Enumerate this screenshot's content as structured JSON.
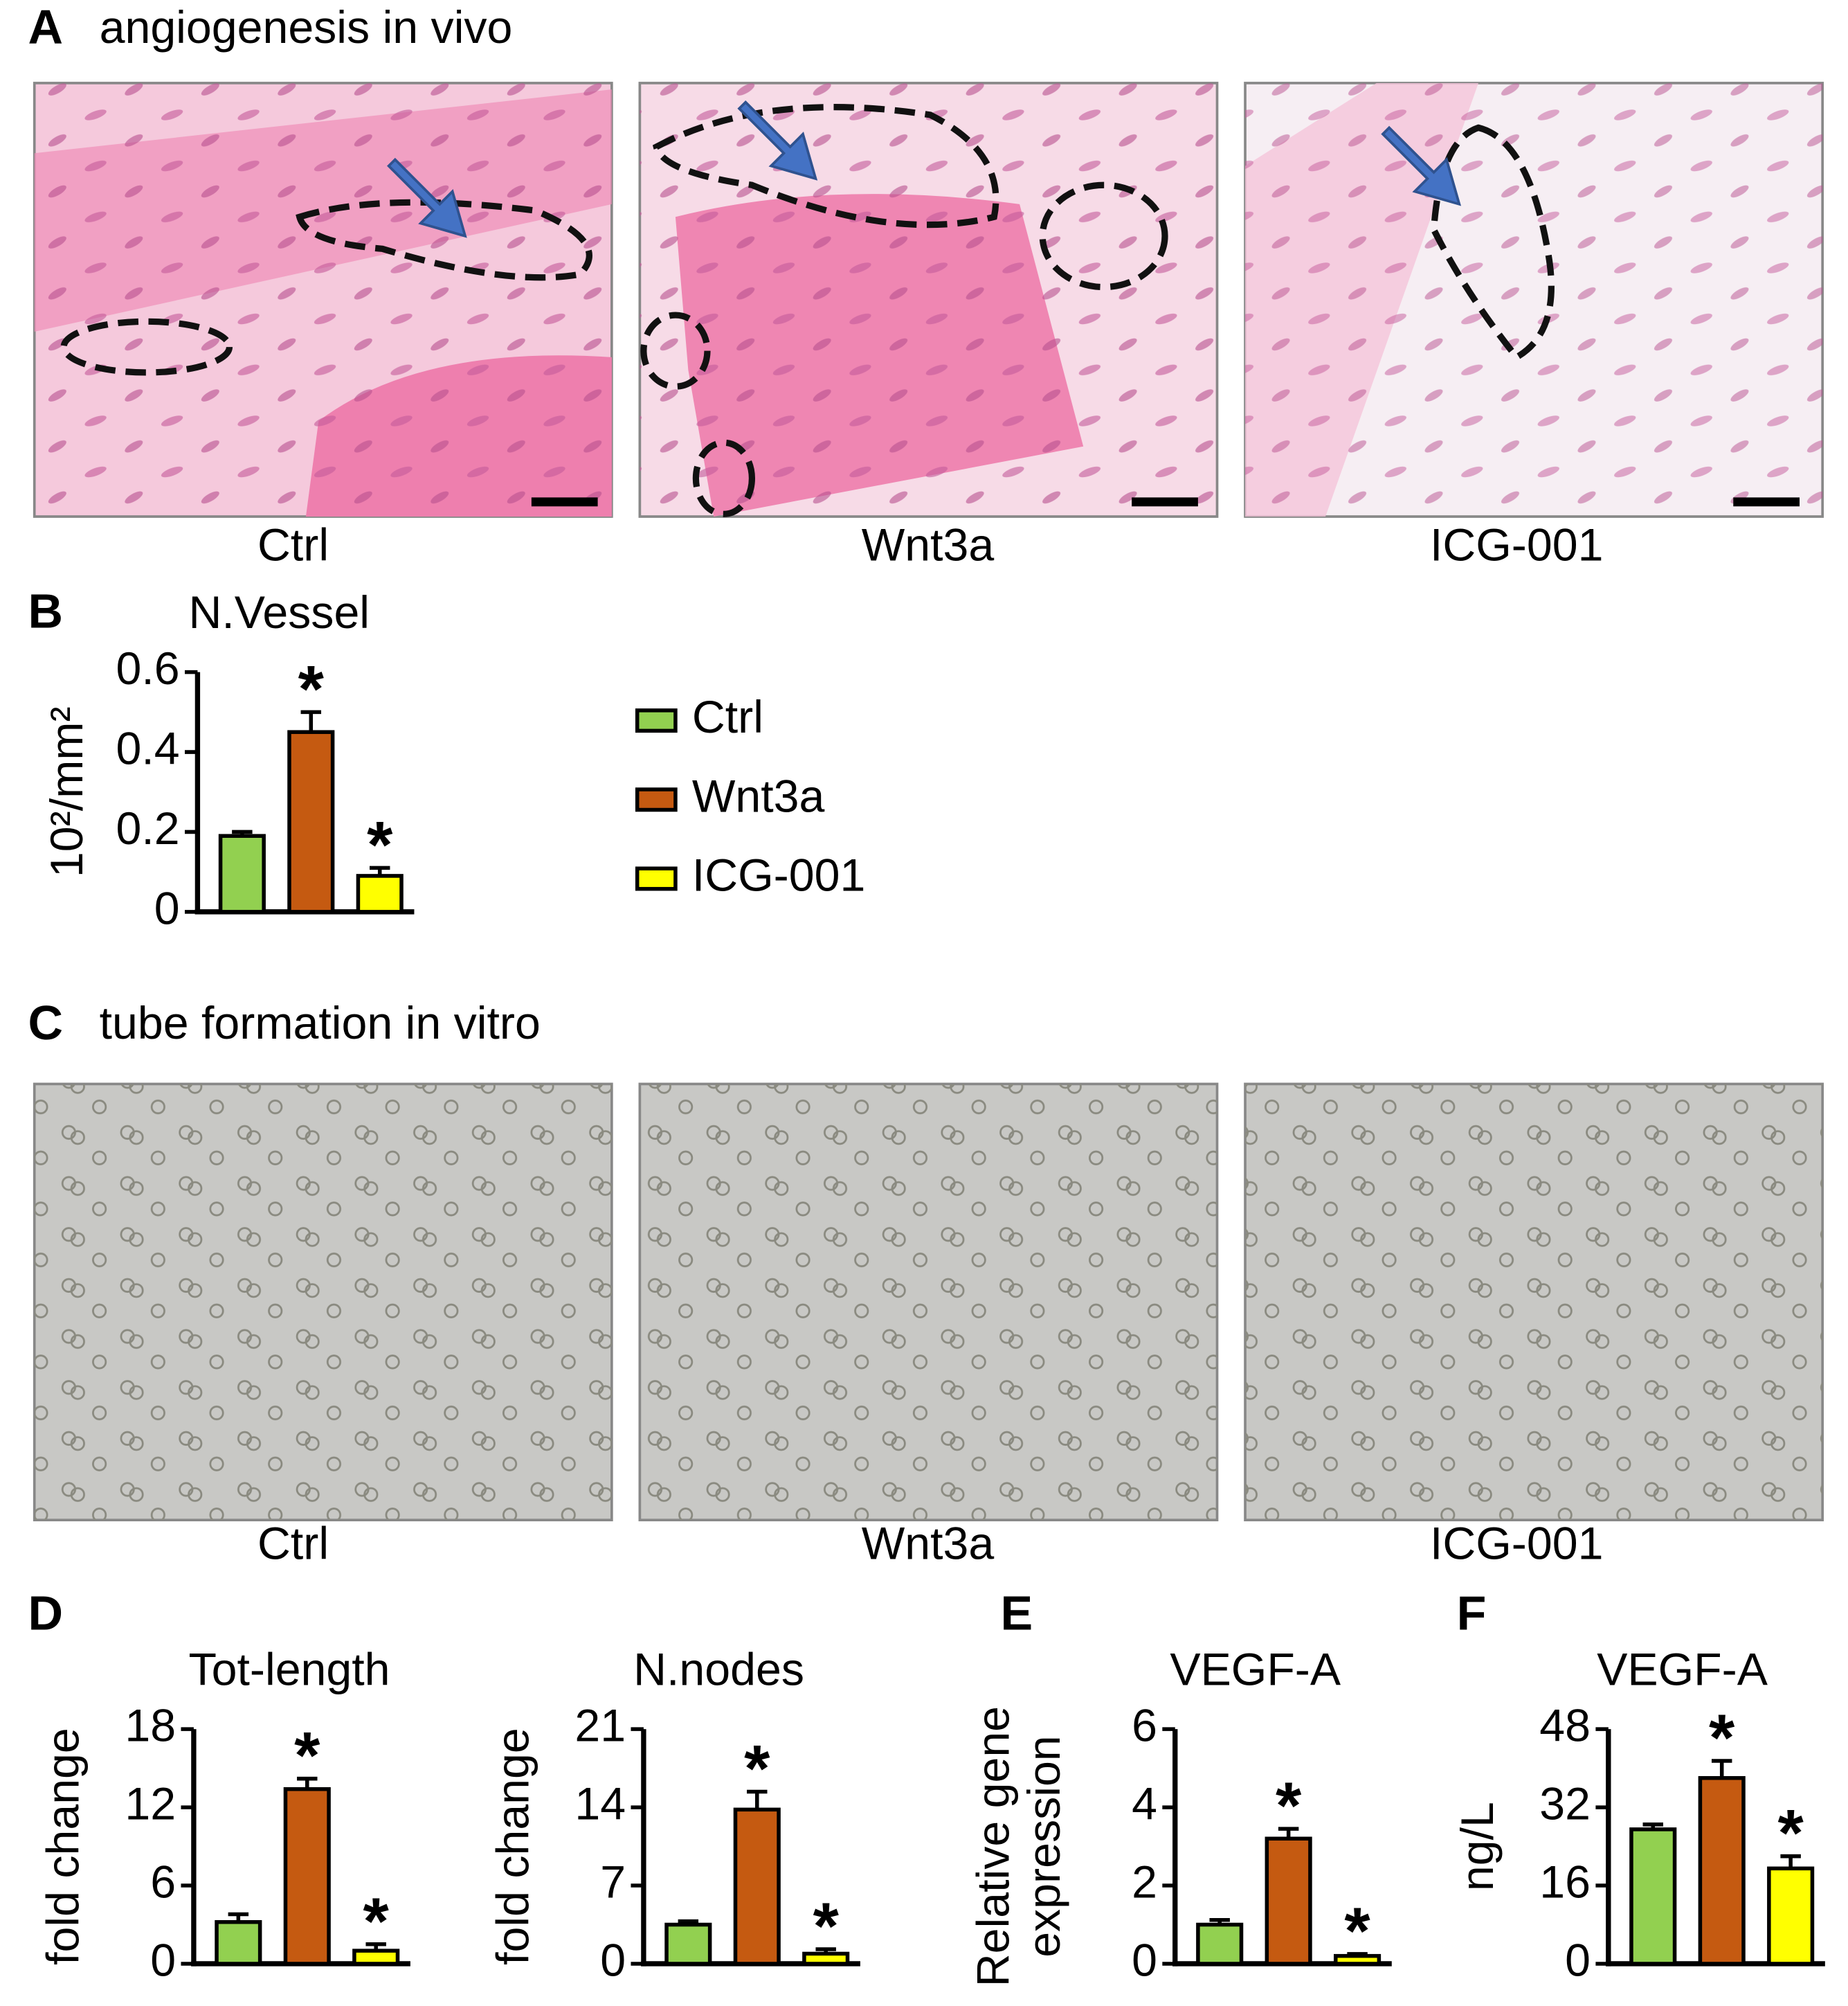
{
  "panels": [
    {
      "letter": "A",
      "title": "angiogenesis in vivo",
      "captions": [
        "Ctrl",
        "Wnt3a",
        "ICG-001"
      ]
    },
    {
      "letter": "B"
    },
    {
      "letter": "C",
      "title": "tube formation in vitro",
      "captions": [
        "Ctrl",
        "Wnt3a",
        "ICG-001"
      ]
    },
    {
      "letter": "D"
    },
    {
      "letter": "E"
    },
    {
      "letter": "F"
    }
  ],
  "chart_data": [
    {
      "type": "bar",
      "title": "N.Vessel",
      "ylabel": "10²/mm²",
      "categories": [
        "Ctrl",
        "Wnt3a",
        "ICG-001"
      ],
      "colors": [
        "#92d050",
        "#c55a11",
        "#ffff00"
      ],
      "values": [
        0.19,
        0.45,
        0.09
      ],
      "errors": [
        0.01,
        0.05,
        0.02
      ],
      "significance": [
        null,
        "*",
        "*"
      ],
      "ylim": [
        0,
        0.6
      ],
      "yticks": [
        0,
        0.2,
        0.4,
        0.6
      ]
    },
    {
      "type": "bar",
      "title": "Tot-length",
      "ylabel": "fold change",
      "colors": [
        "#92d050",
        "#c55a11",
        "#ffff00"
      ],
      "values": [
        3.2,
        13.4,
        1.0
      ],
      "errors": [
        0.6,
        0.8,
        0.5
      ],
      "significance": [
        null,
        "*",
        "*"
      ],
      "ylim": [
        0,
        18
      ],
      "yticks": [
        0,
        6,
        12,
        18
      ]
    },
    {
      "type": "bar",
      "title": "N.nodes",
      "ylabel": "fold change",
      "colors": [
        "#92d050",
        "#c55a11",
        "#ffff00"
      ],
      "values": [
        3.5,
        13.8,
        0.9
      ],
      "errors": [
        0.3,
        1.6,
        0.4
      ],
      "significance": [
        null,
        "*",
        "*"
      ],
      "ylim": [
        0,
        21
      ],
      "yticks": [
        0,
        7,
        14,
        21
      ]
    },
    {
      "type": "bar",
      "title": "VEGF-A",
      "ylabel": [
        "Relative gene",
        "expression"
      ],
      "colors": [
        "#92d050",
        "#c55a11",
        "#ffff00"
      ],
      "values": [
        1.0,
        3.2,
        0.2
      ],
      "errors": [
        0.12,
        0.25,
        0.05
      ],
      "significance": [
        null,
        "*",
        "*"
      ],
      "ylim": [
        0,
        6
      ],
      "yticks": [
        0,
        2,
        4,
        6
      ]
    },
    {
      "type": "bar",
      "title": "VEGF-A",
      "ylabel": "ng/L",
      "colors": [
        "#92d050",
        "#c55a11",
        "#ffff00"
      ],
      "values": [
        27.5,
        38,
        19.5
      ],
      "errors": [
        1,
        3.5,
        2.5
      ],
      "significance": [
        null,
        "*",
        "*"
      ],
      "ylim": [
        0,
        48
      ],
      "yticks": [
        0,
        16,
        32,
        48
      ]
    }
  ]
}
